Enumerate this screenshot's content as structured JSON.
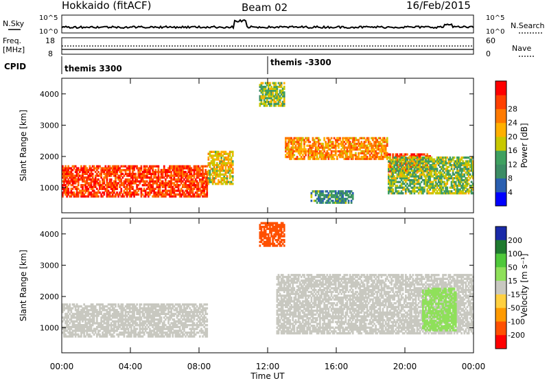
{
  "header": {
    "title": "Hokkaido (fitACF)",
    "beam": "Beam 02",
    "date": "16/Feb/2015"
  },
  "noise_panel": {
    "left_label": "N.Sky",
    "right_label": "N.Search",
    "ticks_left": [
      "10^5",
      "10^0"
    ],
    "ticks_right": [
      "10^5",
      "10^0"
    ]
  },
  "freq_panel": {
    "left_label_1": "Freq.",
    "left_label_2": "[MHz]",
    "right_label": "Nave",
    "ticks_left": [
      "18",
      "8"
    ],
    "ticks_right": [
      "60",
      "0"
    ]
  },
  "cpid_panel": {
    "label": "CPID",
    "segments": [
      {
        "text": "themis 3300",
        "start_hour": 0
      },
      {
        "text": "themis -3300",
        "start_hour": 12
      }
    ]
  },
  "time_axis": {
    "label": "Time UT",
    "ticks": [
      "00:00",
      "04:00",
      "08:00",
      "12:00",
      "16:00",
      "20:00",
      "00:00"
    ]
  },
  "chart_data": [
    {
      "type": "heatmap",
      "title": "",
      "xlabel": "Time UT",
      "ylabel": "Slant Range [km]",
      "xlim": [
        0,
        24
      ],
      "ylim": [
        200,
        4500
      ],
      "yticks": [
        "1000",
        "2000",
        "3000",
        "4000"
      ],
      "colorbar": {
        "label": "Power [dB]",
        "ticks": [
          "4",
          "8",
          "12",
          "16",
          "20",
          "24",
          "28"
        ],
        "colors": [
          "#0000ff",
          "#2a5fb0",
          "#3c8c64",
          "#3fa060",
          "#c8c800",
          "#ffb000",
          "#ff7a00",
          "#ff4000",
          "#ff0000"
        ]
      },
      "regions": [
        {
          "t0": 0,
          "t1": 8.5,
          "r0": 700,
          "r1": 1700,
          "value": 27,
          "note": "band"
        },
        {
          "t0": 8.5,
          "t1": 10,
          "r0": 1100,
          "r1": 2200,
          "value": 18
        },
        {
          "t0": 13,
          "t1": 19,
          "r0": 1900,
          "r1": 2600,
          "value": 22
        },
        {
          "t0": 19,
          "t1": 21.5,
          "r0": 1500,
          "r1": 2100,
          "value": 26
        },
        {
          "t0": 11.5,
          "t1": 13,
          "r0": 3600,
          "r1": 4400,
          "value": 14
        },
        {
          "t0": 14.5,
          "t1": 17,
          "r0": 500,
          "r1": 900,
          "value": 10
        },
        {
          "t0": 19,
          "t1": 24,
          "r0": 800,
          "r1": 2000,
          "value": 14
        }
      ]
    },
    {
      "type": "heatmap",
      "title": "",
      "xlabel": "Time UT",
      "ylabel": "Slant Range [km]",
      "xlim": [
        0,
        24
      ],
      "ylim": [
        200,
        4500
      ],
      "yticks": [
        "1000",
        "2000",
        "3000",
        "4000"
      ],
      "colorbar": {
        "label": "Velocity [m s^-1]",
        "ticks": [
          "200",
          "100",
          "50",
          "15",
          "-15",
          "-50",
          "-100",
          "-200"
        ],
        "colors": [
          "#1a2aa8",
          "#1f7a2f",
          "#4fc83a",
          "#8fe05a",
          "#c8c8c0",
          "#ffd040",
          "#ff9a00",
          "#ff5000",
          "#ff0000"
        ]
      },
      "regions": [
        {
          "t0": 0,
          "t1": 8.5,
          "r0": 700,
          "r1": 1800,
          "value": 0
        },
        {
          "t0": 12.5,
          "t1": 24,
          "r0": 800,
          "r1": 2700,
          "value": 0
        },
        {
          "t0": 11.5,
          "t1": 13,
          "r0": 3600,
          "r1": 4400,
          "value": -150
        },
        {
          "t0": 21,
          "t1": 23,
          "r0": 900,
          "r1": 2300,
          "value": 40
        }
      ]
    }
  ]
}
